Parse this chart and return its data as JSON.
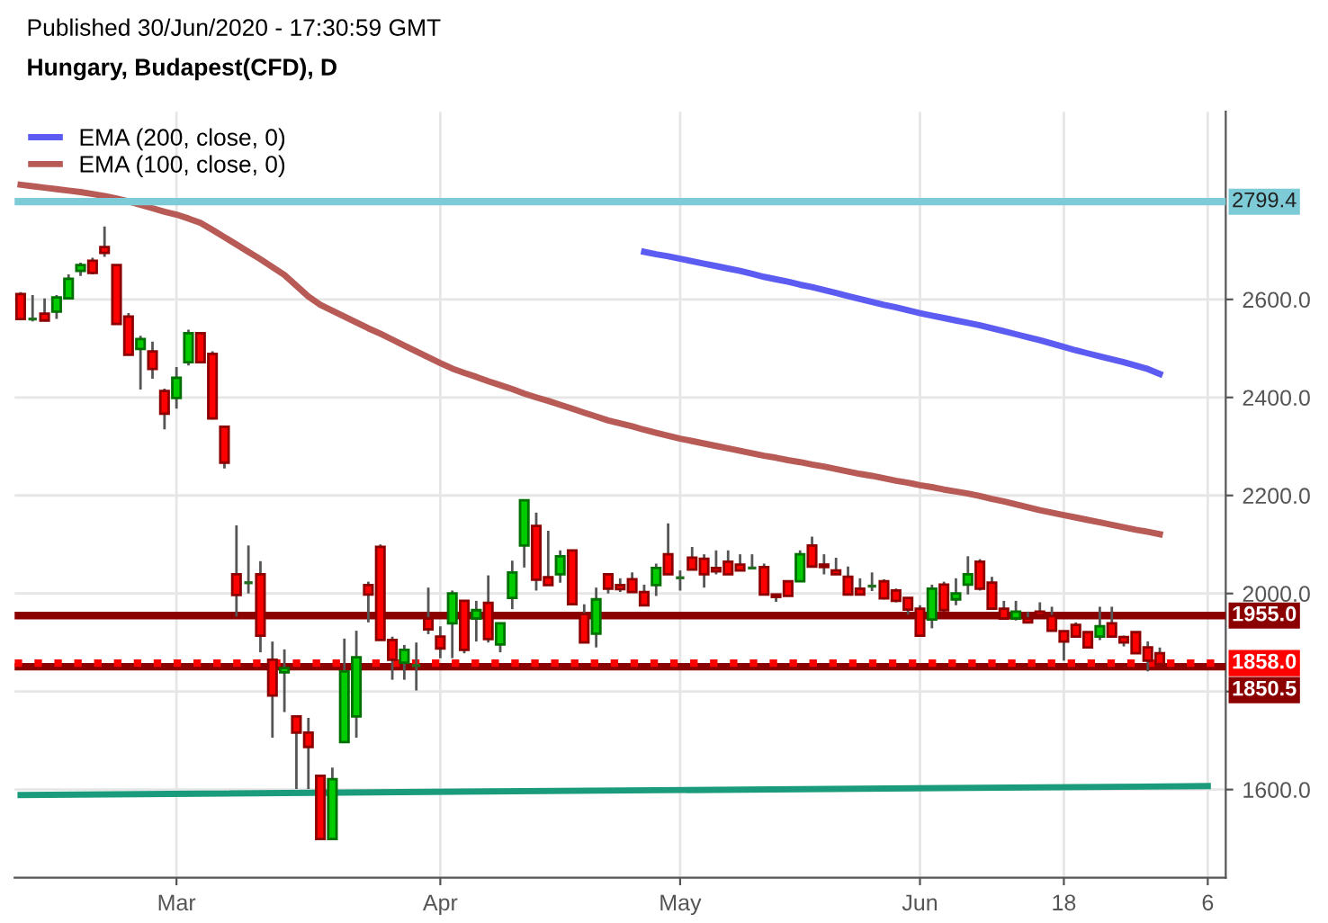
{
  "chart_data": {
    "type": "candlestick",
    "title": "Hungary, Budapest(CFD), D",
    "annotations": [
      "Published 30/Jun/2020 - 17:30:59 GMT"
    ],
    "categories": [
      null,
      null,
      null,
      null,
      null,
      null,
      null,
      null,
      null,
      null,
      null,
      null,
      null,
      "Mar",
      null,
      null,
      null,
      null,
      null,
      null,
      null,
      null,
      null,
      null,
      null,
      null,
      null,
      null,
      null,
      null,
      null,
      null,
      null,
      null,
      null,
      "Apr",
      null,
      null,
      null,
      null,
      null,
      null,
      null,
      null,
      null,
      null,
      null,
      null,
      null,
      null,
      null,
      null,
      null,
      null,
      null,
      "May",
      null,
      null,
      null,
      null,
      null,
      null,
      null,
      null,
      null,
      null,
      null,
      null,
      null,
      null,
      null,
      null,
      null,
      null,
      null,
      "Jun",
      null,
      null,
      null,
      null,
      null,
      null,
      null,
      null,
      null,
      null,
      null,
      "18",
      null,
      null,
      null,
      null,
      null,
      null,
      null,
      null,
      null,
      null,
      null,
      "6"
    ],
    "ohlc": [
      [
        2611,
        2615,
        2558,
        2560
      ],
      [
        2560,
        2609,
        2555,
        2560
      ],
      [
        2571,
        2602,
        2556,
        2557
      ],
      [
        2575,
        2609,
        2560,
        2604
      ],
      [
        2602,
        2651,
        2602,
        2642
      ],
      [
        2658,
        2675,
        2648,
        2670
      ],
      [
        2679,
        2685,
        2651,
        2654
      ],
      [
        2707,
        2749,
        2687,
        2695
      ],
      [
        2670,
        2670,
        2550,
        2550
      ],
      [
        2565,
        2572,
        2487,
        2487
      ],
      [
        2499,
        2526,
        2416,
        2519
      ],
      [
        2494,
        2514,
        2438,
        2458
      ],
      [
        2413,
        2418,
        2335,
        2367
      ],
      [
        2399,
        2462,
        2377,
        2440
      ],
      [
        2472,
        2538,
        2465,
        2531
      ],
      [
        2531,
        2531,
        2472,
        2472
      ],
      [
        2489,
        2494,
        2355,
        2357
      ],
      [
        2340,
        2340,
        2255,
        2267
      ],
      [
        2039,
        2139,
        1953,
        1997
      ],
      [
        2022,
        2098,
        2000,
        2022
      ],
      [
        2039,
        2066,
        1880,
        1914
      ],
      [
        1865,
        1902,
        1706,
        1792
      ],
      [
        1839,
        1886,
        1758,
        1848
      ],
      [
        1749,
        1749,
        1601,
        1716
      ],
      [
        1716,
        1746,
        1601,
        1687
      ],
      [
        1628,
        1628,
        1499,
        1499
      ],
      [
        1499,
        1645,
        1499,
        1621
      ],
      [
        1697,
        1908,
        1697,
        1841
      ],
      [
        1749,
        1924,
        1706,
        1870
      ],
      [
        2017,
        2024,
        1941,
        1998
      ],
      [
        2095,
        2100,
        1905,
        1905
      ],
      [
        1905,
        1912,
        1824,
        1865
      ],
      [
        1859,
        1895,
        1824,
        1885
      ],
      [
        1853,
        1900,
        1802,
        1853
      ],
      [
        1949,
        2012,
        1917,
        1927
      ],
      [
        1912,
        1933,
        1868,
        1888
      ],
      [
        1939,
        2006,
        1868,
        2000
      ],
      [
        1985,
        1985,
        1878,
        1885
      ],
      [
        1949,
        1985,
        1902,
        1966
      ],
      [
        1981,
        2037,
        1900,
        1907
      ],
      [
        1896,
        1941,
        1880,
        1939
      ],
      [
        1991,
        2067,
        1968,
        2043
      ],
      [
        2098,
        2190,
        2053,
        2190
      ],
      [
        2138,
        2165,
        2006,
        2028
      ],
      [
        2033,
        2128,
        2017,
        2017
      ],
      [
        2039,
        2088,
        2022,
        2076
      ],
      [
        2088,
        2088,
        1978,
        1978
      ],
      [
        1958,
        1978,
        1900,
        1900
      ],
      [
        1918,
        2012,
        1890,
        1988
      ],
      [
        2039,
        2039,
        2000,
        2010
      ],
      [
        2017,
        2031,
        2003,
        2009
      ],
      [
        2029,
        2043,
        2003,
        2003
      ],
      [
        2003,
        2018,
        1976,
        1976
      ],
      [
        2017,
        2061,
        1995,
        2052
      ],
      [
        2080,
        2143,
        2039,
        2039
      ],
      [
        2032,
        2047,
        2006,
        2032
      ],
      [
        2073,
        2095,
        2049,
        2049
      ],
      [
        2071,
        2080,
        2012,
        2039
      ],
      [
        2052,
        2088,
        2039,
        2045
      ],
      [
        2065,
        2088,
        2039,
        2039
      ],
      [
        2059,
        2080,
        2047,
        2047
      ],
      [
        2052,
        2080,
        2049,
        2052
      ],
      [
        2054,
        2061,
        1998,
        1998
      ],
      [
        1998,
        1998,
        1983,
        1993
      ],
      [
        2025,
        2025,
        1995,
        1995
      ],
      [
        2025,
        2088,
        2025,
        2080
      ],
      [
        2098,
        2116,
        2055,
        2055
      ],
      [
        2059,
        2080,
        2039,
        2054
      ],
      [
        2047,
        2073,
        2039,
        2039
      ],
      [
        2034,
        2055,
        1998,
        1998
      ],
      [
        2010,
        2031,
        1998,
        1998
      ],
      [
        2015,
        2043,
        2005,
        2015
      ],
      [
        2025,
        2029,
        1988,
        1990
      ],
      [
        2006,
        2010,
        1982,
        1985
      ],
      [
        1991,
        1991,
        1957,
        1967
      ],
      [
        1969,
        1976,
        1914,
        1914
      ],
      [
        1947,
        2018,
        1929,
        2010
      ],
      [
        2018,
        2024,
        1963,
        1966
      ],
      [
        1988,
        2031,
        1976,
        2000
      ],
      [
        2018,
        2076,
        1998,
        2039
      ],
      [
        2065,
        2070,
        2006,
        2010
      ],
      [
        2022,
        2034,
        1969,
        1969
      ],
      [
        1969,
        1985,
        1949,
        1949
      ],
      [
        1949,
        1985,
        1945,
        1963
      ],
      [
        1949,
        1963,
        1939,
        1941
      ],
      [
        1963,
        1982,
        1954,
        1956
      ],
      [
        1954,
        1973,
        1924,
        1924
      ],
      [
        1923,
        1923,
        1863,
        1902
      ],
      [
        1936,
        1941,
        1912,
        1912
      ],
      [
        1921,
        1921,
        1890,
        1890
      ],
      [
        1912,
        1973,
        1905,
        1933
      ],
      [
        1939,
        1973,
        1912,
        1912
      ],
      [
        1911,
        1914,
        1892,
        1900
      ],
      [
        1921,
        1921,
        1878,
        1878
      ],
      [
        1890,
        1902,
        1841,
        1863
      ],
      [
        1878,
        1890,
        1856,
        1856
      ],
      null,
      null,
      null,
      null
    ],
    "colors": [
      "#ff0000",
      "#1f6f1f",
      "#ff0000",
      "#00cc00",
      "#00cc00",
      "#00cc00",
      "#ff0000",
      "#ff0000",
      "#ff0000",
      "#ff0000",
      "#00cc00",
      "#ff0000",
      "#ff0000",
      "#00cc00",
      "#00cc00",
      "#ff0000",
      "#ff0000",
      "#ff0000",
      "#ff0000",
      "#1f6f1f",
      "#ff0000",
      "#ff0000",
      "#00cc00",
      "#ff0000",
      "#ff0000",
      "#ff0000",
      "#00cc00",
      "#00cc00",
      "#00cc00",
      "#ff0000",
      "#ff0000",
      "#ff0000",
      "#00cc00",
      "#1f6f1f",
      "#ff0000",
      "#ff0000",
      "#00cc00",
      "#ff0000",
      "#00cc00",
      "#ff0000",
      "#00cc00",
      "#00cc00",
      "#00cc00",
      "#ff0000",
      "#ff0000",
      "#00cc00",
      "#ff0000",
      "#ff0000",
      "#00cc00",
      "#ff0000",
      "#ff0000",
      "#ff0000",
      "#ff0000",
      "#00cc00",
      "#ff0000",
      "#1f6f1f",
      "#ff0000",
      "#ff0000",
      "#ff0000",
      "#ff0000",
      "#ff0000",
      "#1f6f1f",
      "#ff0000",
      "#ff0000",
      "#ff0000",
      "#00cc00",
      "#ff0000",
      "#ff0000",
      "#ff0000",
      "#ff0000",
      "#ff0000",
      "#1f6f1f",
      "#ff0000",
      "#ff0000",
      "#ff0000",
      "#ff0000",
      "#00cc00",
      "#ff0000",
      "#00cc00",
      "#00cc00",
      "#ff0000",
      "#ff0000",
      "#ff0000",
      "#00cc00",
      "#ff0000",
      "#ff0000",
      "#ff0000",
      "#ff0000",
      "#ff0000",
      "#ff0000",
      "#00cc00",
      "#ff0000",
      "#ff0000",
      "#ff0000",
      "#ff0000",
      "#ff0000",
      null,
      null,
      null,
      null
    ],
    "series": [
      {
        "type": "line",
        "name": "EMA (200, close, 0)",
        "color": "#5c5cf2",
        "values": [
          null,
          null,
          null,
          null,
          null,
          null,
          null,
          null,
          null,
          null,
          null,
          null,
          null,
          null,
          null,
          null,
          null,
          null,
          null,
          null,
          null,
          null,
          null,
          null,
          null,
          null,
          null,
          null,
          null,
          null,
          null,
          null,
          null,
          null,
          null,
          null,
          null,
          null,
          null,
          null,
          null,
          null,
          null,
          null,
          null,
          null,
          null,
          null,
          null,
          null,
          null,
          null,
          2697,
          2692,
          2688,
          2683,
          2678,
          2673,
          2668,
          2663,
          2658,
          2652,
          2646,
          2641,
          2636,
          2630,
          2625,
          2619,
          2613,
          2607,
          2601,
          2595,
          2589,
          2584,
          2578,
          2572,
          2567,
          2562,
          2557,
          2552,
          2547,
          2541,
          2535,
          2529,
          2523,
          2517,
          2510,
          2503,
          2496,
          2490,
          2484,
          2478,
          2472,
          2465,
          2458,
          2448,
          null,
          null,
          null,
          null
        ]
      },
      {
        "type": "line",
        "name": "EMA (100, close, 0)",
        "color": "#b85a55",
        "values": [
          2834,
          2831,
          2828,
          2825,
          2822,
          2819,
          2815,
          2811,
          2806,
          2800,
          2793,
          2786,
          2779,
          2773,
          2765,
          2756,
          2742,
          2727,
          2712,
          2697,
          2682,
          2666,
          2650,
          2628,
          2606,
          2589,
          2577,
          2565,
          2553,
          2541,
          2530,
          2518,
          2506,
          2494,
          2482,
          2470,
          2459,
          2450,
          2442,
          2433,
          2425,
          2417,
          2408,
          2400,
          2393,
          2385,
          2377,
          2369,
          2361,
          2353,
          2347,
          2341,
          2334,
          2328,
          2322,
          2316,
          2311,
          2306,
          2301,
          2296,
          2291,
          2286,
          2281,
          2277,
          2272,
          2268,
          2263,
          2259,
          2254,
          2249,
          2244,
          2240,
          2235,
          2230,
          2226,
          2221,
          2217,
          2212,
          2208,
          2204,
          2199,
          2193,
          2188,
          2182,
          2176,
          2170,
          2165,
          2160,
          2155,
          2150,
          2145,
          2140,
          2135,
          2130,
          2126,
          2121,
          null,
          null,
          null,
          null
        ]
      },
      {
        "type": "line",
        "color": "#1a9c7c",
        "values": [
          1589,
          null,
          null,
          null,
          null,
          null,
          null,
          null,
          null,
          null,
          null,
          null,
          null,
          null,
          null,
          null,
          null,
          null,
          null,
          null,
          null,
          null,
          null,
          null,
          null,
          null,
          null,
          null,
          null,
          null,
          null,
          null,
          null,
          null,
          null,
          null,
          null,
          null,
          null,
          null,
          null,
          null,
          null,
          null,
          null,
          null,
          null,
          null,
          null,
          null,
          null,
          null,
          null,
          null,
          null,
          null,
          null,
          null,
          null,
          null,
          null,
          null,
          null,
          null,
          null,
          null,
          null,
          null,
          null,
          null,
          null,
          null,
          null,
          null,
          null,
          null,
          null,
          null,
          null,
          null,
          null,
          null,
          null,
          null,
          null,
          null,
          null,
          null,
          null,
          null,
          null,
          null,
          null,
          null,
          null,
          null,
          null,
          null,
          null,
          1607
        ]
      }
    ],
    "ref_lines": [
      {
        "axis": "y",
        "value": 2799.4,
        "label": "2799.4",
        "color": "#7ecbd8",
        "line_style": "solid"
      },
      {
        "axis": "y",
        "value": 1955.0,
        "label": "1955.0",
        "color": "#8b0000",
        "line_style": "solid"
      },
      {
        "axis": "y",
        "value": 1850.5,
        "label": "1850.5",
        "color": "#8b0000",
        "line_style": "solid"
      },
      {
        "axis": "y",
        "value": 1858.0,
        "label": "1858.0",
        "color": "#ff0000",
        "line_style": "dotted"
      }
    ],
    "ylim": [
      1420,
      2983
    ],
    "yticks": [
      {
        "value": 1600,
        "label": "1600.0"
      },
      {
        "value": 1800,
        "label": null
      },
      {
        "value": 2000,
        "label": "2000.0"
      },
      {
        "value": 2200,
        "label": "2200.0"
      },
      {
        "value": 2400,
        "label": "2400.0"
      },
      {
        "value": 2600,
        "label": "2600.0"
      }
    ],
    "grid": true,
    "legend": "top left"
  }
}
